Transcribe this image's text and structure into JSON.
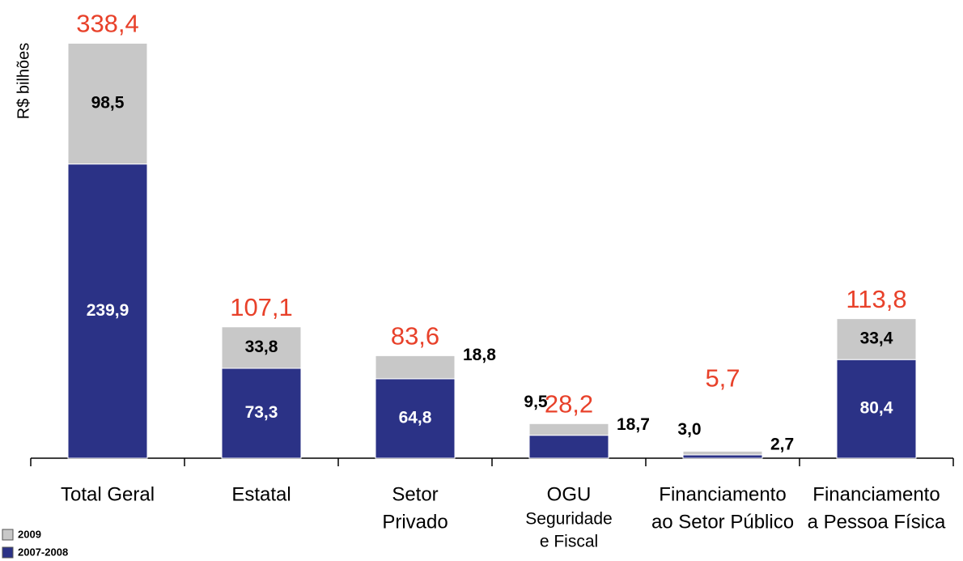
{
  "chart_data": {
    "type": "stacked_bar",
    "y_label": "R$ bilhões",
    "categories": [
      [
        "Total Geral"
      ],
      [
        "Estatal"
      ],
      [
        "Setor",
        "Privado"
      ],
      [
        "OGU",
        "Seguridade",
        "e Fiscal"
      ],
      [
        "Financiamento",
        "ao Setor Público"
      ],
      [
        "Financiamento",
        "a Pessoa Física"
      ]
    ],
    "series": [
      {
        "name": "2007-2008",
        "color": "#2b3286",
        "values": [
          239.9,
          73.3,
          64.8,
          18.7,
          2.7,
          80.4
        ],
        "value_labels": [
          "239,9",
          "73,3",
          "64,8",
          "18,7",
          "2,7",
          "80,4"
        ]
      },
      {
        "name": "2009",
        "color": "#c8c8c8",
        "values": [
          98.5,
          33.8,
          18.8,
          9.5,
          3.0,
          33.4
        ],
        "value_labels": [
          "98,5",
          "33,8",
          "18,8",
          "9,5",
          "3,0",
          "33,4"
        ]
      }
    ],
    "totals": [
      338.4,
      107.1,
      83.6,
      28.2,
      5.7,
      113.8
    ],
    "total_labels": [
      "338,4",
      "107,1",
      "83,6",
      "28,2",
      "5,7",
      "113,8"
    ],
    "total_color": "#e8412a",
    "ylim": [
      0,
      340
    ]
  }
}
